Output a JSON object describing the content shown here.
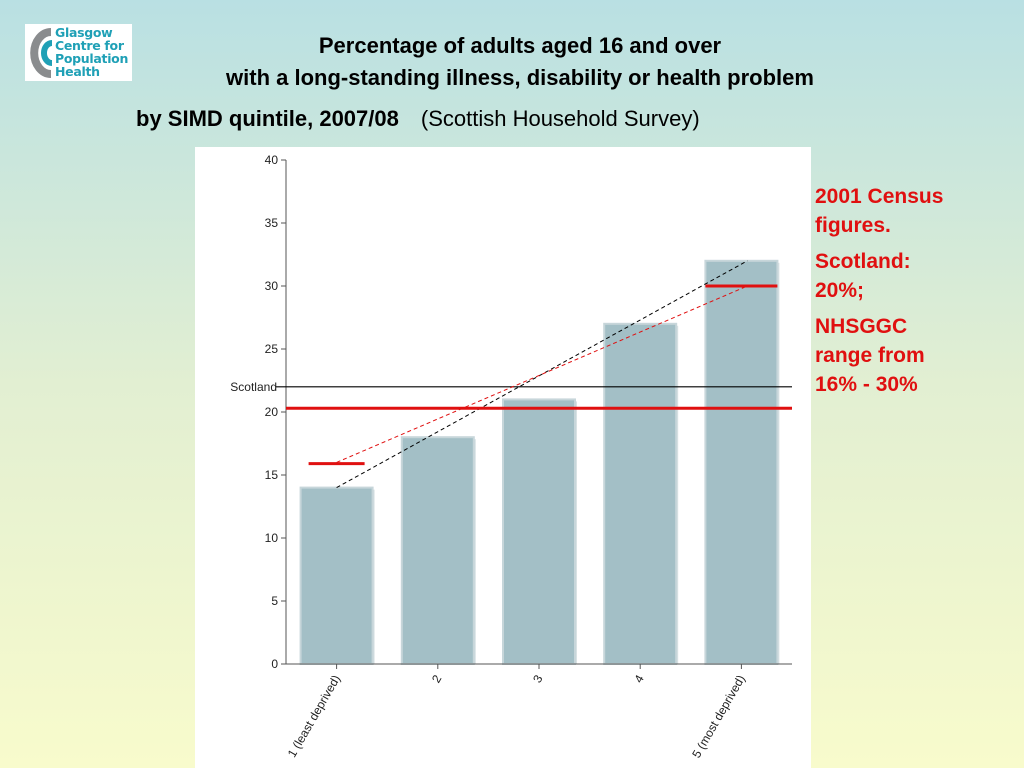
{
  "logo": {
    "lines": [
      "Glasgow",
      "Centre for",
      "Population",
      "Health"
    ],
    "colors": {
      "c_outer": "#8a8c8e",
      "c_inner": "#1fa0b6",
      "text": "#1fa0b6"
    }
  },
  "header": {
    "title_line1": "Percentage of adults aged 16 and over",
    "title_line2": "with a long-standing illness, disability or health problem",
    "title_line3": "by SIMD quintile, 2007/08",
    "source": "(Scottish Household Survey)"
  },
  "census_note": {
    "line1": "2001 Census figures.",
    "line2": "Scotland: 20%;",
    "line3": "NHSGGC range from 16% - 30%",
    "color": "#e01010"
  },
  "chart_data": {
    "type": "bar",
    "categories": [
      "1 (least deprived)",
      "2",
      "3",
      "4",
      "5 (most deprived)"
    ],
    "values": [
      14,
      18,
      21,
      27,
      32
    ],
    "ylim": [
      0,
      40
    ],
    "yticks": [
      0,
      5,
      10,
      15,
      20,
      25,
      30,
      35,
      40
    ],
    "grid": false,
    "bar_color": "#a3bfc6",
    "reference_line": {
      "label": "Scotland",
      "value": 22,
      "color": "#000000"
    },
    "census_lines": {
      "scotland": 20.3,
      "quintile1": 15.9,
      "quintile5": 30,
      "color": "#e01010"
    },
    "trend_lines": [
      {
        "style": "black-dashed",
        "from": [
          1,
          14
        ],
        "to": [
          5,
          32
        ],
        "color": "#000000"
      },
      {
        "style": "red-dashed",
        "from": [
          1,
          16
        ],
        "to": [
          5,
          30
        ],
        "color": "#e01010"
      }
    ]
  }
}
